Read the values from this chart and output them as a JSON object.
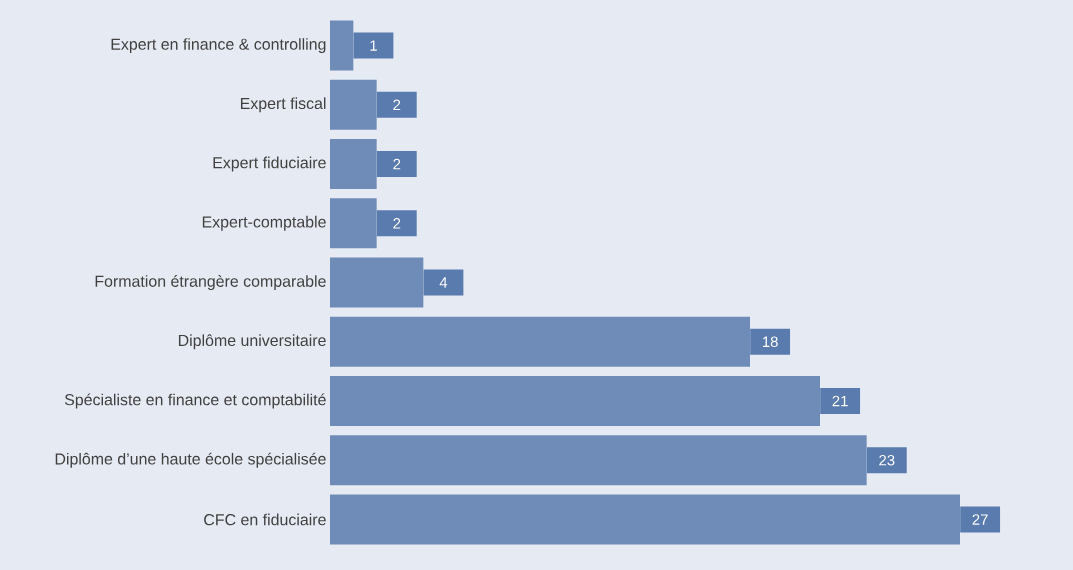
{
  "chart_data": {
    "type": "bar",
    "orientation": "horizontal",
    "categories": [
      "Expert en finance & controlling",
      "Expert fiscal",
      "Expert fiduciaire",
      "Expert-comptable",
      "Formation étrangère comparable",
      "Diplôme universitaire",
      "Spécialiste en finance et comptabilité",
      "Diplôme d’une haute école spécialisée",
      "CFC en fiduciaire"
    ],
    "values": [
      1,
      2,
      2,
      2,
      4,
      18,
      21,
      23,
      27
    ],
    "color": "#6f8cb8",
    "data_labels": true
  }
}
